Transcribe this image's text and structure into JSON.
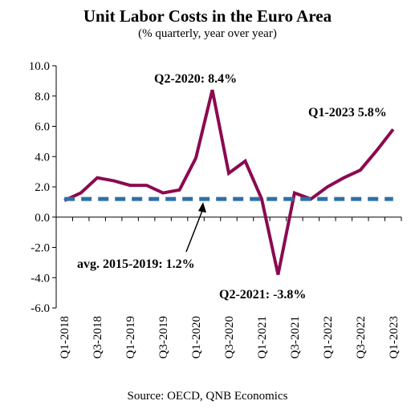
{
  "chart_data": {
    "type": "line",
    "title": "Unit Labor Costs in the Euro Area",
    "subtitle": "(% quarterly, year over year)",
    "source": "Source: OECD, QNB Economics",
    "ylim": [
      -6.0,
      10.0
    ],
    "yticks": [
      "10.0",
      "8.0",
      "6.0",
      "4.0",
      "2.0",
      "0.0",
      "-2.0",
      "-4.0",
      "-6.0"
    ],
    "ytick_values": [
      10,
      8,
      6,
      4,
      2,
      0,
      -2,
      -4,
      -6
    ],
    "categories": [
      "Q1-2018",
      "Q2-2018",
      "Q3-2018",
      "Q4-2018",
      "Q1-2019",
      "Q2-2019",
      "Q3-2019",
      "Q4-2019",
      "Q1-2020",
      "Q2-2020",
      "Q3-2020",
      "Q4-2020",
      "Q1-2021",
      "Q2-2021",
      "Q3-2021",
      "Q4-2021",
      "Q1-2022",
      "Q2-2022",
      "Q3-2022",
      "Q4-2022",
      "Q1-2023"
    ],
    "xtick_labels": [
      "Q1-2018",
      "Q3-2018",
      "Q1-2019",
      "Q3-2019",
      "Q1-2020",
      "Q3-2020",
      "Q1-2021",
      "Q3-2021",
      "Q1-2022",
      "Q3-2022",
      "Q1-2023"
    ],
    "series": [
      {
        "values": [
          1.1,
          1.6,
          2.6,
          2.4,
          2.1,
          2.1,
          1.6,
          1.8,
          3.9,
          8.4,
          2.9,
          3.7,
          1.2,
          -3.8,
          1.6,
          1.2,
          2.0,
          2.6,
          3.1,
          4.4,
          5.8
        ],
        "color": "#8b0a50",
        "style": "solid"
      },
      {
        "values": [
          1.2,
          1.2,
          1.2,
          1.2,
          1.2,
          1.2,
          1.2,
          1.2,
          1.2,
          1.2,
          1.2,
          1.2,
          1.2,
          1.2,
          1.2,
          1.2,
          1.2,
          1.2,
          1.2,
          1.2,
          1.2
        ],
        "color": "#2f6fa8",
        "style": "dashed"
      }
    ],
    "annotations": [
      {
        "text": "Q2-2020: 8.4%"
      },
      {
        "text": "Q1-2023 5.8%"
      },
      {
        "text": "Q2-2021: -3.8%"
      },
      {
        "text": "avg. 2015-2019: 1.2%"
      }
    ],
    "grid": false,
    "legend": "none"
  }
}
